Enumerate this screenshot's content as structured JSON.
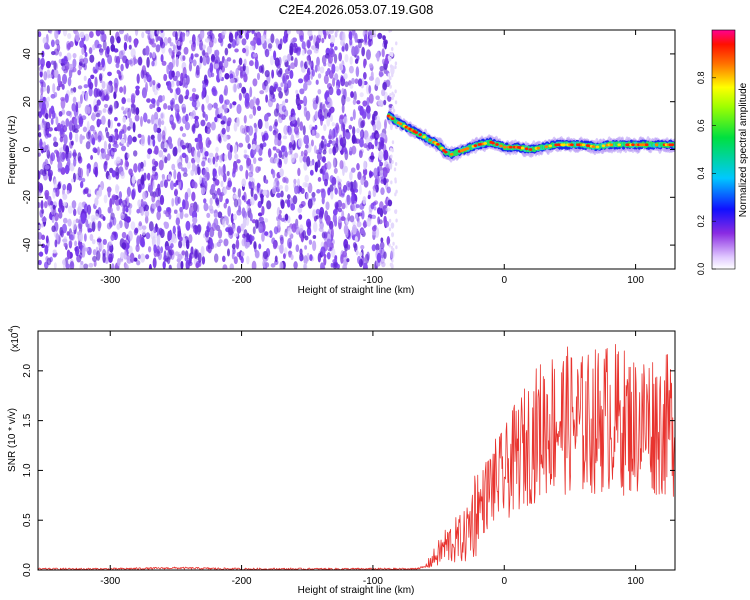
{
  "figure_title": "C2E4.2026.053.07.19.G08",
  "colors": {
    "snr_line": "#e8332e",
    "axis": "#000000",
    "spectro_noise": "#6a28e0"
  },
  "chart_data": [
    {
      "type": "heatmap",
      "name": "spectrogram",
      "title": "C2E4.2026.053.07.19.G08",
      "xlabel": "Height of straight line (km)",
      "ylabel": "Frequency (Hz)",
      "xlim": [
        -355,
        130
      ],
      "ylim": [
        -50,
        50
      ],
      "x_ticks": [
        -300,
        -200,
        -100,
        0,
        100
      ],
      "y_ticks": [
        -40,
        -20,
        0,
        20,
        40
      ],
      "noise_region_x": [
        -355,
        -88
      ],
      "signal_track": {
        "x": [
          -88,
          -80,
          -70,
          -60,
          -50,
          -45,
          -40,
          -30,
          -20,
          -10,
          0,
          10,
          20,
          30,
          40,
          50,
          60,
          70,
          80,
          90,
          100,
          110,
          120,
          130
        ],
        "y": [
          14,
          11,
          8,
          5,
          2,
          -1,
          -2,
          0,
          2,
          3,
          1,
          1,
          0,
          1,
          2,
          2,
          2,
          1,
          2,
          2,
          2,
          2,
          2,
          2
        ]
      },
      "colorbar": {
        "label": "Normalized spectral amplitude",
        "range": [
          0,
          1
        ],
        "ticks": [
          "0.0",
          "0.2",
          "0.4",
          "0.6",
          "0.8"
        ],
        "tick_values": [
          0.0,
          0.2,
          0.4,
          0.6,
          0.8
        ]
      }
    },
    {
      "type": "line",
      "name": "snr",
      "xlabel": "Height of straight line (km)",
      "ylabel": "SNR (10 * v/v)",
      "scale_label": "(x10",
      "scale_exponent": "4",
      "scale_suffix": ")",
      "xlim": [
        -355,
        130
      ],
      "ylim": [
        0,
        2.4
      ],
      "x_ticks": [
        -300,
        -200,
        -100,
        0,
        100
      ],
      "y_ticks": [
        "0.0",
        "0.5",
        "1.0",
        "1.5",
        "2.0"
      ],
      "y_tick_values": [
        0.0,
        0.5,
        1.0,
        1.5,
        2.0
      ],
      "series_envelope": {
        "x": [
          -355,
          -300,
          -250,
          -200,
          -150,
          -100,
          -70,
          -60,
          -50,
          -45,
          -40,
          -30,
          -20,
          -10,
          0,
          10,
          20,
          30,
          40,
          50,
          60,
          70,
          80,
          90,
          100,
          110,
          120,
          130
        ],
        "mean": [
          0.01,
          0.01,
          0.02,
          0.01,
          0.01,
          0.01,
          0.01,
          0.03,
          0.15,
          0.22,
          0.25,
          0.3,
          0.6,
          0.85,
          0.95,
          1.15,
          1.3,
          1.45,
          1.5,
          1.5,
          1.45,
          1.5,
          1.55,
          1.5,
          1.45,
          1.5,
          1.45,
          1.45
        ]
      }
    }
  ]
}
